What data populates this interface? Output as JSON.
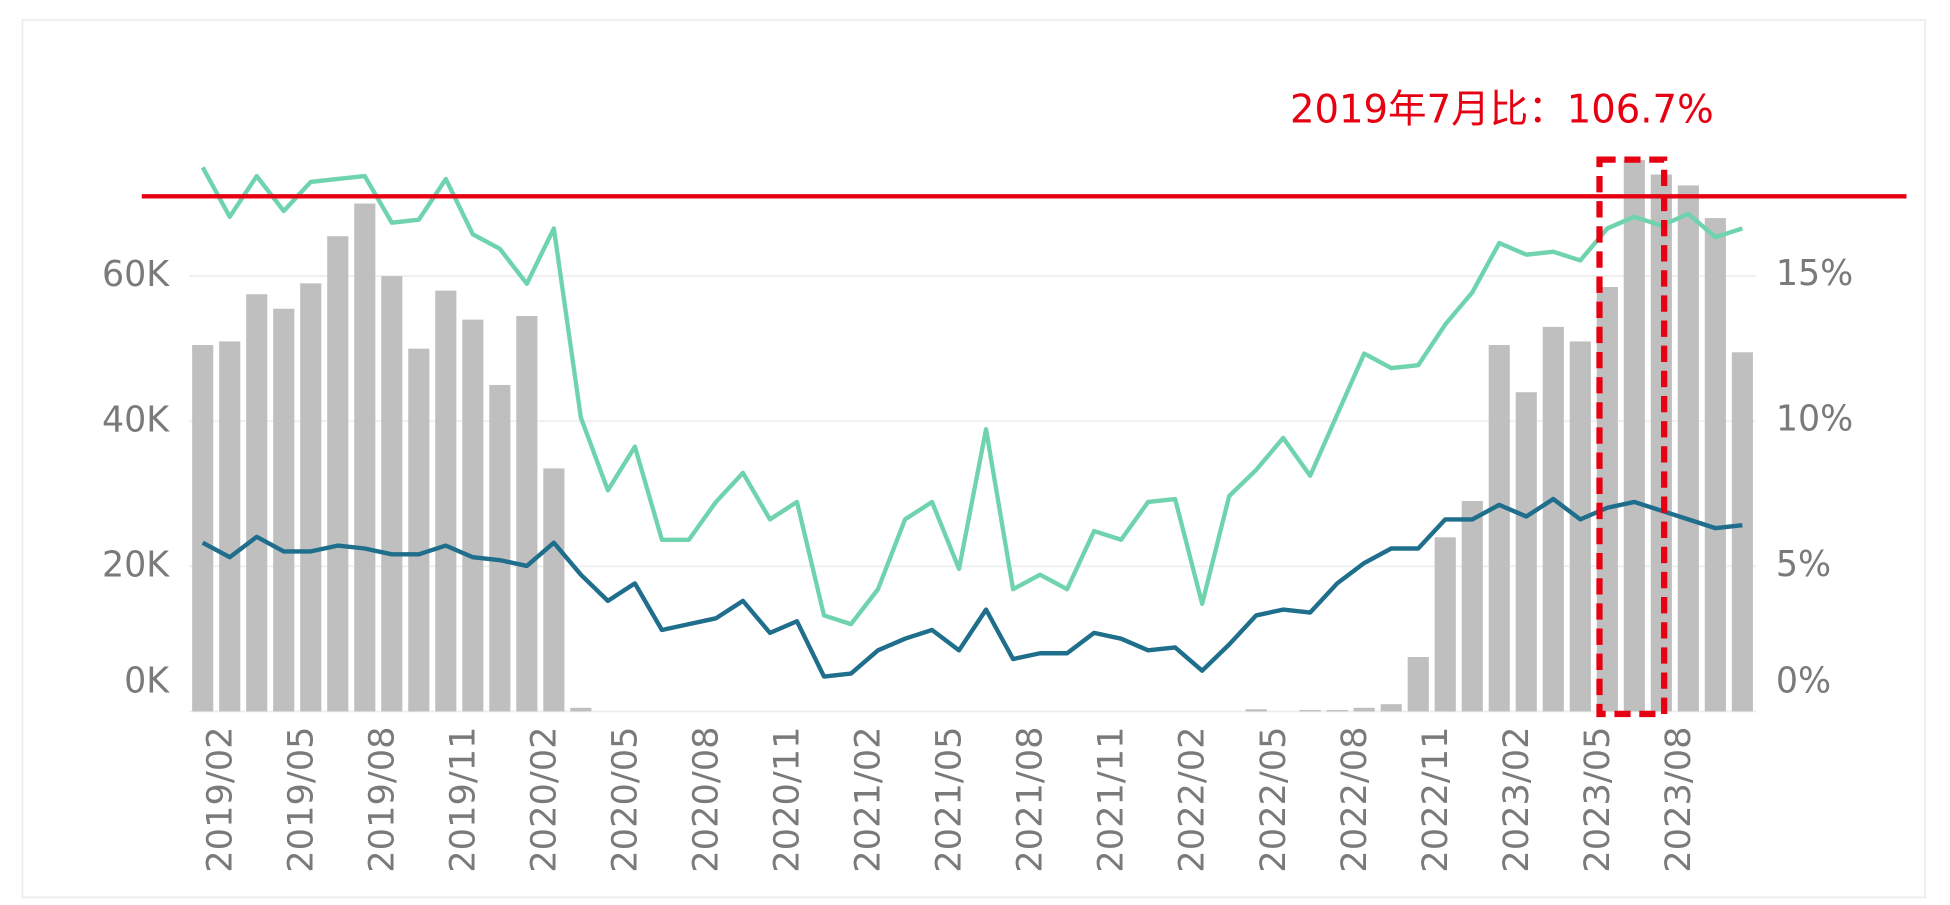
{
  "chart_data": {
    "type": "bar-line",
    "annotation": "2019年7月比：106.7%",
    "reference_line": {
      "value": 71000,
      "color": "#e60012"
    },
    "highlight_index": 53,
    "categories": [
      "2019/02",
      null,
      null,
      "2019/05",
      null,
      null,
      "2019/08",
      null,
      null,
      "2019/11",
      null,
      null,
      "2020/02",
      null,
      null,
      "2020/05",
      null,
      null,
      "2020/08",
      null,
      null,
      "2020/11",
      null,
      null,
      "2021/02",
      null,
      null,
      "2021/05",
      null,
      null,
      "2021/08",
      null,
      null,
      "2021/11",
      null,
      null,
      "2022/02",
      null,
      null,
      "2022/05",
      null,
      null,
      "2022/08",
      null,
      null,
      "2022/11",
      null,
      null,
      "2023/02",
      null,
      null,
      "2023/05",
      null,
      null,
      "2023/08",
      null,
      null,
      null
    ],
    "ylim": [
      0,
      79000
    ],
    "yticks": [
      {
        "value": 0,
        "label": "0K"
      },
      {
        "value": 20000,
        "label": "20K"
      },
      {
        "value": 40000,
        "label": "40K"
      },
      {
        "value": 60000,
        "label": "60K"
      }
    ],
    "y2lim": [
      0,
      19.7
    ],
    "y2ticks": [
      {
        "value": 0,
        "label": "0%"
      },
      {
        "value": 5,
        "label": "5%"
      },
      {
        "value": 10,
        "label": "10%"
      },
      {
        "value": 15,
        "label": "15%"
      }
    ],
    "grid": true,
    "series": [
      {
        "type": "bar",
        "color": "#bfbfbf",
        "values": [
          50500,
          51000,
          57500,
          55500,
          59000,
          65500,
          70000,
          60000,
          50000,
          58000,
          54000,
          45000,
          54500,
          33500,
          500,
          0,
          0,
          0,
          0,
          0,
          0,
          0,
          0,
          0,
          0,
          0,
          0,
          0,
          0,
          0,
          0,
          0,
          0,
          0,
          0,
          0,
          0,
          0,
          0,
          300,
          0,
          200,
          200,
          500,
          1000,
          7500,
          24000,
          29000,
          50500,
          44000,
          53000,
          51000,
          58500,
          76000,
          74000,
          72500,
          68000,
          49500
        ]
      },
      {
        "type": "line",
        "axis": "y2",
        "color": "#6fd4ae",
        "values": [
          18.7,
          17.0,
          18.4,
          17.2,
          18.2,
          18.3,
          18.4,
          16.8,
          16.9,
          18.3,
          16.4,
          15.9,
          14.7,
          16.6,
          10.1,
          7.6,
          9.1,
          5.9,
          5.9,
          7.2,
          8.2,
          6.6,
          7.2,
          3.3,
          3.0,
          4.2,
          6.6,
          7.2,
          4.9,
          9.7,
          4.2,
          4.7,
          4.2,
          6.2,
          5.9,
          7.2,
          7.3,
          3.7,
          7.4,
          8.3,
          9.4,
          8.1,
          10.2,
          12.3,
          11.8,
          11.9,
          13.3,
          14.4,
          16.1,
          15.7,
          15.8,
          15.5,
          16.6,
          17.0,
          16.7,
          17.1,
          16.3,
          16.6
        ]
      },
      {
        "type": "line",
        "axis": "y2",
        "color": "#1f6e8c",
        "values": [
          5.8,
          5.3,
          6.0,
          5.5,
          5.5,
          5.7,
          5.6,
          5.4,
          5.4,
          5.7,
          5.3,
          5.2,
          5.0,
          5.8,
          4.7,
          3.8,
          4.4,
          2.8,
          3.0,
          3.2,
          3.8,
          2.7,
          3.1,
          1.2,
          1.3,
          2.1,
          2.5,
          2.8,
          2.1,
          3.5,
          1.8,
          2.0,
          2.0,
          2.7,
          2.5,
          2.1,
          2.2,
          1.4,
          2.3,
          3.3,
          3.5,
          3.4,
          4.4,
          5.1,
          5.6,
          5.6,
          6.6,
          6.6,
          7.1,
          6.7,
          7.3,
          6.6,
          7.0,
          7.2,
          6.9,
          6.6,
          6.3,
          6.4
        ]
      }
    ]
  }
}
